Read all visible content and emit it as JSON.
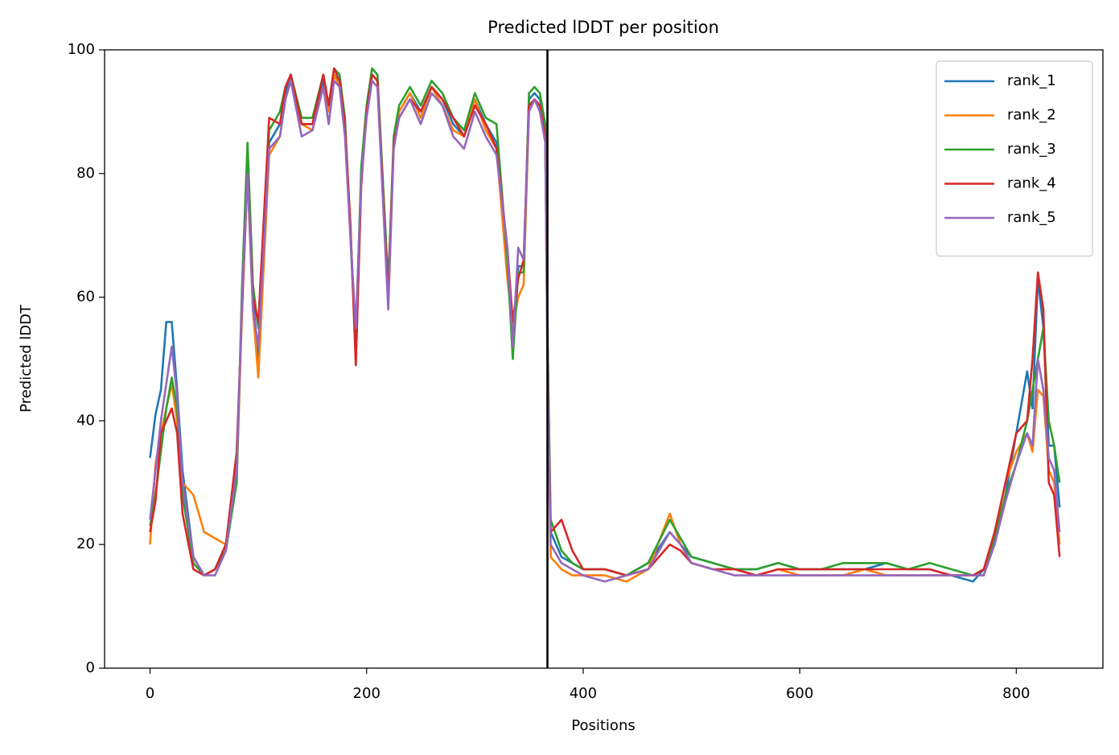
{
  "chart_data": {
    "type": "line",
    "title": "Predicted lDDT per position",
    "xlabel": "Positions",
    "ylabel": "Predicted lDDT",
    "xlim": [
      -42,
      880
    ],
    "ylim": [
      0,
      100
    ],
    "xticks": [
      0,
      200,
      400,
      600,
      800
    ],
    "yticks": [
      0,
      20,
      40,
      60,
      80,
      100
    ],
    "legend": "upper right",
    "vline": 367,
    "vline_color": "#000000",
    "x": [
      0,
      5,
      10,
      15,
      20,
      25,
      30,
      40,
      50,
      60,
      70,
      80,
      85,
      90,
      95,
      100,
      110,
      120,
      125,
      130,
      140,
      150,
      160,
      165,
      170,
      175,
      180,
      185,
      190,
      195,
      200,
      205,
      210,
      220,
      225,
      230,
      240,
      250,
      260,
      270,
      280,
      290,
      300,
      310,
      320,
      330,
      335,
      340,
      345,
      350,
      355,
      360,
      365,
      367,
      370,
      380,
      390,
      400,
      420,
      440,
      460,
      480,
      490,
      500,
      520,
      540,
      560,
      580,
      600,
      620,
      640,
      660,
      680,
      700,
      720,
      740,
      760,
      770,
      780,
      790,
      800,
      810,
      815,
      820,
      825,
      830,
      835,
      840
    ],
    "series": [
      {
        "name": "rank_1",
        "color": "#1f77b4",
        "values": [
          34,
          41,
          45,
          56,
          56,
          45,
          32,
          18,
          15,
          16,
          20,
          32,
          60,
          84,
          60,
          50,
          85,
          88,
          93,
          96,
          88,
          88,
          95,
          90,
          96,
          95,
          88,
          70,
          52,
          80,
          90,
          96,
          95,
          60,
          85,
          90,
          93,
          90,
          94,
          92,
          88,
          86,
          92,
          88,
          85,
          65,
          52,
          65,
          65,
          92,
          93,
          92,
          88,
          55,
          22,
          18,
          17,
          16,
          16,
          15,
          17,
          22,
          20,
          18,
          17,
          16,
          16,
          17,
          16,
          16,
          16,
          16,
          17,
          16,
          16,
          15,
          14,
          16,
          20,
          28,
          38,
          48,
          42,
          63,
          55,
          36,
          36,
          26
        ]
      },
      {
        "name": "rank_2",
        "color": "#ff7f0e",
        "values": [
          20,
          33,
          38,
          42,
          46,
          40,
          30,
          28,
          22,
          21,
          20,
          30,
          58,
          80,
          58,
          47,
          83,
          86,
          92,
          95,
          88,
          87,
          94,
          90,
          96,
          94,
          87,
          72,
          50,
          78,
          90,
          96,
          95,
          62,
          84,
          90,
          93,
          89,
          94,
          91,
          87,
          86,
          92,
          87,
          84,
          63,
          55,
          60,
          62,
          90,
          92,
          91,
          86,
          52,
          18,
          16,
          15,
          15,
          15,
          14,
          16,
          25,
          20,
          17,
          16,
          16,
          15,
          16,
          15,
          15,
          15,
          16,
          15,
          15,
          15,
          15,
          15,
          15,
          22,
          30,
          35,
          38,
          35,
          45,
          44,
          32,
          30,
          20
        ]
      },
      {
        "name": "rank_3",
        "color": "#2ca02c",
        "values": [
          23,
          28,
          35,
          42,
          47,
          42,
          28,
          17,
          15,
          16,
          19,
          30,
          62,
          85,
          62,
          55,
          87,
          90,
          94,
          96,
          89,
          89,
          96,
          91,
          97,
          96,
          89,
          71,
          53,
          81,
          91,
          97,
          96,
          62,
          86,
          91,
          94,
          91,
          95,
          93,
          89,
          87,
          93,
          89,
          88,
          66,
          50,
          64,
          64,
          93,
          94,
          93,
          88,
          55,
          24,
          19,
          17,
          16,
          16,
          15,
          17,
          24,
          21,
          18,
          17,
          16,
          16,
          17,
          16,
          16,
          17,
          17,
          17,
          16,
          17,
          16,
          15,
          16,
          21,
          28,
          33,
          40,
          45,
          50,
          55,
          40,
          36,
          30
        ]
      },
      {
        "name": "rank_4",
        "color": "#d62728",
        "values": [
          22,
          27,
          38,
          40,
          42,
          38,
          25,
          16,
          15,
          16,
          20,
          35,
          58,
          80,
          60,
          56,
          89,
          88,
          94,
          96,
          88,
          88,
          96,
          91,
          97,
          95,
          88,
          72,
          49,
          78,
          90,
          96,
          95,
          60,
          85,
          89,
          92,
          90,
          94,
          92,
          89,
          86,
          91,
          88,
          84,
          68,
          56,
          63,
          66,
          91,
          92,
          91,
          86,
          52,
          22,
          24,
          19,
          16,
          16,
          15,
          16,
          20,
          19,
          17,
          16,
          16,
          15,
          16,
          16,
          16,
          16,
          16,
          16,
          16,
          16,
          15,
          15,
          16,
          22,
          30,
          38,
          40,
          50,
          64,
          58,
          30,
          28,
          18
        ]
      },
      {
        "name": "rank_5",
        "color": "#9467bd",
        "values": [
          24,
          32,
          40,
          46,
          52,
          44,
          30,
          18,
          15,
          15,
          19,
          32,
          60,
          80,
          58,
          52,
          84,
          86,
          92,
          95,
          86,
          87,
          94,
          88,
          95,
          94,
          86,
          70,
          55,
          79,
          89,
          95,
          94,
          58,
          84,
          89,
          92,
          88,
          93,
          91,
          86,
          84,
          90,
          86,
          83,
          68,
          52,
          68,
          66,
          90,
          92,
          90,
          85,
          50,
          20,
          17,
          16,
          15,
          14,
          15,
          16,
          22,
          20,
          17,
          16,
          15,
          15,
          15,
          15,
          15,
          15,
          15,
          15,
          15,
          15,
          15,
          15,
          15,
          20,
          27,
          33,
          38,
          36,
          50,
          45,
          34,
          32,
          22
        ]
      }
    ]
  }
}
